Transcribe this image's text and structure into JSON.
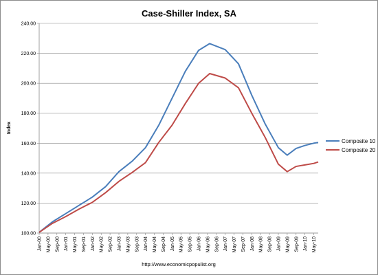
{
  "chart_data": {
    "type": "line",
    "title": "Case-Shiller Index, SA",
    "ylabel": "Index",
    "xlabel": "",
    "ylim": [
      100,
      240
    ],
    "yticks": [
      "100.00",
      "120.00",
      "140.00",
      "160.00",
      "180.00",
      "200.00",
      "220.00",
      "240.00"
    ],
    "grid": "horizontal",
    "legend_position": "right",
    "x_tick_labels": [
      "Jan-00",
      "May-00",
      "Sep-00",
      "Jan-01",
      "May-01",
      "Sep-01",
      "Jan-02",
      "May-02",
      "Sep-02",
      "Jan-03",
      "May-03",
      "Sep-03",
      "Jan-04",
      "May-04",
      "Sep-04",
      "Jan-05",
      "May-05",
      "Sep-05",
      "Jan-06",
      "May-06",
      "Sep-06",
      "Jan-07",
      "May-07",
      "Sep-07",
      "Jan-08",
      "May-08",
      "Sep-08",
      "Jan-09",
      "May-09",
      "Sep-09",
      "Jan-10",
      "May-10"
    ],
    "x_first": "Jan-00",
    "x_last": "Jul-10",
    "series": [
      {
        "name": "Composite 10",
        "color": "#4a7ebb",
        "points": [
          [
            "Jan-00",
            100.5
          ],
          [
            "Jul-00",
            107.5
          ],
          [
            "Jan-01",
            113
          ],
          [
            "Jul-01",
            118.5
          ],
          [
            "Jan-02",
            124
          ],
          [
            "Jul-02",
            131
          ],
          [
            "Jan-03",
            141
          ],
          [
            "Jul-03",
            148
          ],
          [
            "Jan-04",
            157
          ],
          [
            "Jul-04",
            172
          ],
          [
            "Jan-05",
            190
          ],
          [
            "Jul-05",
            208
          ],
          [
            "Jan-06",
            222
          ],
          [
            "Jun-06",
            226.5
          ],
          [
            "Jan-07",
            222.5
          ],
          [
            "Jul-07",
            213
          ],
          [
            "Jan-08",
            192
          ],
          [
            "Jul-08",
            173
          ],
          [
            "Jan-09",
            157
          ],
          [
            "May-09",
            152
          ],
          [
            "Sep-09",
            156.5
          ],
          [
            "Jan-10",
            158.5
          ],
          [
            "May-10",
            160
          ],
          [
            "Jul-10",
            160.5
          ]
        ]
      },
      {
        "name": "Composite 20",
        "color": "#be4b48",
        "points": [
          [
            "Jan-00",
            100.5
          ],
          [
            "Jul-00",
            106.5
          ],
          [
            "Jan-01",
            111
          ],
          [
            "Jul-01",
            116
          ],
          [
            "Jan-02",
            120.5
          ],
          [
            "Jul-02",
            127
          ],
          [
            "Jan-03",
            134.5
          ],
          [
            "Jul-03",
            140.5
          ],
          [
            "Jan-04",
            147
          ],
          [
            "Jul-04",
            160.5
          ],
          [
            "Jan-05",
            172
          ],
          [
            "Jul-05",
            186.5
          ],
          [
            "Jan-06",
            200
          ],
          [
            "Jun-06",
            206.5
          ],
          [
            "Jan-07",
            203.5
          ],
          [
            "Jul-07",
            197
          ],
          [
            "Jan-08",
            180
          ],
          [
            "Jul-08",
            164
          ],
          [
            "Jan-09",
            146
          ],
          [
            "May-09",
            141
          ],
          [
            "Sep-09",
            144.5
          ],
          [
            "Jan-10",
            145.5
          ],
          [
            "May-10",
            146.5
          ],
          [
            "Jul-10",
            147.5
          ]
        ]
      }
    ],
    "source": "http://www.economicpopulist.org"
  }
}
